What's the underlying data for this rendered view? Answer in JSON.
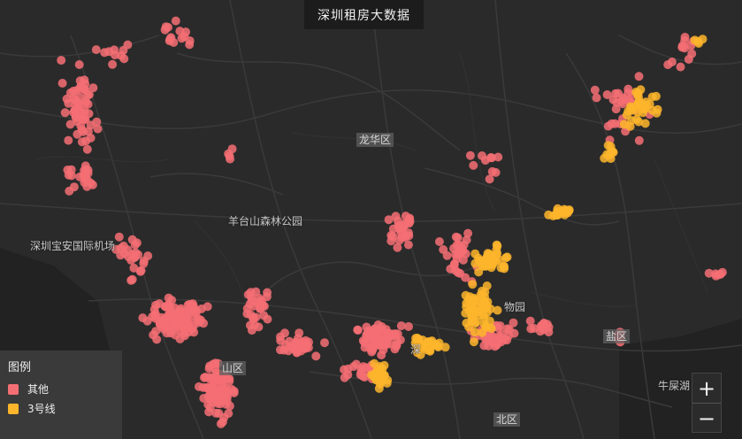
{
  "title": "深圳租房大数据",
  "place_labels": [
    {
      "text": "龙华区",
      "kind": "district"
    },
    {
      "text": "羊台山森林公园",
      "kind": "place"
    },
    {
      "text": "深圳宝安国际机场",
      "kind": "place"
    },
    {
      "text": "物园",
      "kind": "place"
    },
    {
      "text": "盐区",
      "kind": "district"
    },
    {
      "text": "牛屎湖",
      "kind": "place"
    },
    {
      "text": "北区",
      "kind": "district"
    },
    {
      "text": "山区",
      "kind": "district"
    },
    {
      "text": "深",
      "kind": "place"
    }
  ],
  "legend": {
    "title": "图例",
    "items": [
      {
        "label": "其他",
        "color": "#f46f74"
      },
      {
        "label": "3号线",
        "color": "#fdb52b"
      }
    ]
  },
  "zoom": {
    "in_icon": "plus-icon",
    "out_icon": "minus-icon"
  },
  "colors": {
    "background": "#2a2a2a",
    "road": "#3b3b3b",
    "water": "#232323",
    "other": "#f46f74",
    "line3": "#fdb52b"
  }
}
